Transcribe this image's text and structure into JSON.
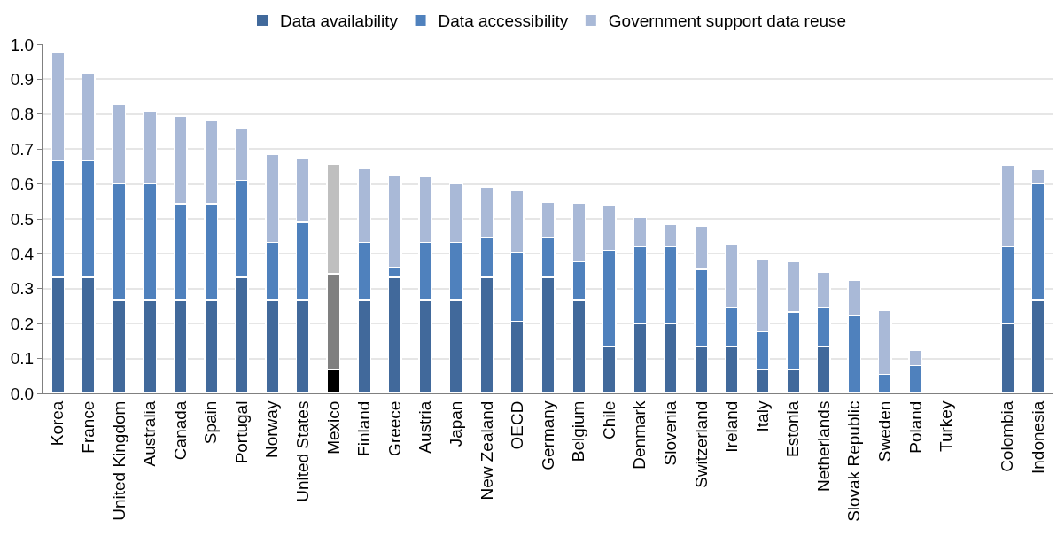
{
  "chart_data": {
    "type": "bar",
    "stacked": true,
    "categories": [
      "Korea",
      "France",
      "United Kingdom",
      "Australia",
      "Canada",
      "Spain",
      "Portugal",
      "Norway",
      "United States",
      "Mexico",
      "Finland",
      "Greece",
      "Austria",
      "Japan",
      "New Zealand",
      "OECD",
      "Germany",
      "Belgium",
      "Chile",
      "Denmark",
      "Slovenia",
      "Switzerland",
      "Ireland",
      "Italy",
      "Estonia",
      "Netherlands",
      "Slovak Republic",
      "Sweden",
      "Poland",
      "Turkey",
      null,
      "Colombia",
      "Indonesia"
    ],
    "series": [
      {
        "name": "Data availability",
        "color": "#41699b",
        "colors": [
          "#41699b",
          "#41699b",
          "#41699b",
          "#41699b",
          "#41699b",
          "#41699b",
          "#41699b",
          "#41699b",
          "#41699b",
          "#000000",
          "#41699b",
          "#41699b",
          "#41699b",
          "#41699b",
          "#41699b",
          "#41699b",
          "#41699b",
          "#41699b",
          "#41699b",
          "#41699b",
          "#41699b",
          "#41699b",
          "#41699b",
          "#41699b",
          "#41699b",
          "#41699b",
          "#41699b",
          "#41699b",
          "#41699b",
          "#41699b",
          "#41699b",
          "#41699b",
          "#41699b"
        ],
        "values": [
          0.333,
          0.333,
          0.267,
          0.267,
          0.267,
          0.267,
          0.333,
          0.267,
          0.267,
          0.067,
          0.267,
          0.333,
          0.267,
          0.267,
          0.333,
          0.207,
          0.333,
          0.267,
          0.133,
          0.2,
          0.2,
          0.133,
          0.133,
          0.067,
          0.067,
          0.133,
          0,
          0,
          0,
          null,
          null,
          0.2,
          0.267
        ]
      },
      {
        "name": "Data accessibility",
        "color": "#4f81bd",
        "colors": [
          "#4f81bd",
          "#4f81bd",
          "#4f81bd",
          "#4f81bd",
          "#4f81bd",
          "#4f81bd",
          "#4f81bd",
          "#4f81bd",
          "#4f81bd",
          "#7f7f7f",
          "#4f81bd",
          "#4f81bd",
          "#4f81bd",
          "#4f81bd",
          "#4f81bd",
          "#4f81bd",
          "#4f81bd",
          "#4f81bd",
          "#4f81bd",
          "#4f81bd",
          "#4f81bd",
          "#4f81bd",
          "#4f81bd",
          "#4f81bd",
          "#4f81bd",
          "#4f81bd",
          "#4f81bd",
          "#4f81bd",
          "#4f81bd",
          "#4f81bd",
          "#4f81bd",
          "#4f81bd",
          "#4f81bd"
        ],
        "values": [
          0.333,
          0.333,
          0.333,
          0.333,
          0.276,
          0.276,
          0.277,
          0.166,
          0.223,
          0.276,
          0.166,
          0.027,
          0.166,
          0.166,
          0.112,
          0.196,
          0.112,
          0.11,
          0.277,
          0.22,
          0.22,
          0.222,
          0.112,
          0.11,
          0.166,
          0.112,
          0.222,
          0.055,
          0.08,
          null,
          null,
          0.22,
          0.333
        ]
      },
      {
        "name": "Government support data reuse",
        "color": "#a9b9d7",
        "colors": [
          "#a9b9d7",
          "#a9b9d7",
          "#a9b9d7",
          "#a9b9d7",
          "#a9b9d7",
          "#a9b9d7",
          "#a9b9d7",
          "#a9b9d7",
          "#a9b9d7",
          "#bfbfbf",
          "#a9b9d7",
          "#a9b9d7",
          "#a9b9d7",
          "#a9b9d7",
          "#a9b9d7",
          "#a9b9d7",
          "#a9b9d7",
          "#a9b9d7",
          "#a9b9d7",
          "#a9b9d7",
          "#a9b9d7",
          "#a9b9d7",
          "#a9b9d7",
          "#a9b9d7",
          "#a9b9d7",
          "#a9b9d7",
          "#a9b9d7",
          "#a9b9d7",
          "#a9b9d7",
          "#a9b9d7",
          "#a9b9d7",
          "#a9b9d7",
          "#a9b9d7"
        ],
        "values": [
          0.31,
          0.25,
          0.23,
          0.21,
          0.25,
          0.237,
          0.147,
          0.252,
          0.183,
          0.314,
          0.21,
          0.265,
          0.187,
          0.167,
          0.145,
          0.177,
          0.103,
          0.168,
          0.127,
          0.085,
          0.065,
          0.125,
          0.183,
          0.208,
          0.145,
          0.103,
          0.103,
          0.183,
          0.043,
          null,
          null,
          0.233,
          0.042
        ]
      }
    ],
    "ylim": [
      0,
      1.0
    ],
    "yticks": [
      {
        "value": 0,
        "label": "0.0"
      },
      0.1,
      0.2,
      0.3,
      0.4,
      0.5,
      0.6,
      0.7,
      0.8,
      0.9,
      {
        "value": 1.0,
        "label": "1.0"
      }
    ],
    "grid": "y",
    "legend": "top"
  }
}
